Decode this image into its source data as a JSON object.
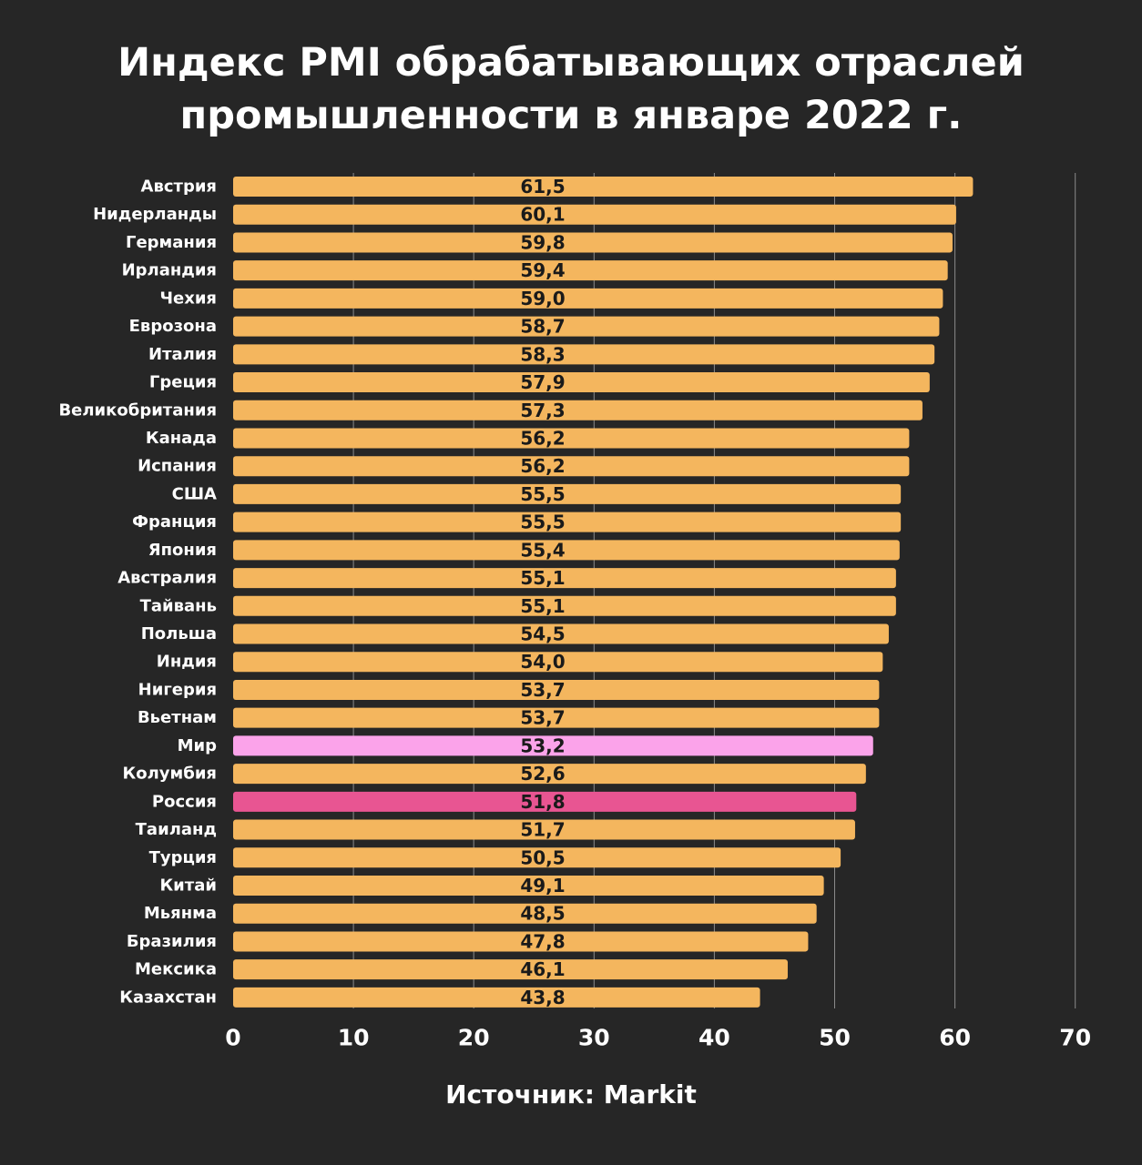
{
  "title_lines": [
    "Индекс PMI обрабатывающих отраслей",
    "промышленности в январе 2022 г."
  ],
  "source": "Источник: Markit",
  "colors": {
    "default": "#f4b65e",
    "world": "#fba3ea",
    "russia": "#e85592",
    "background": "#262626"
  },
  "chart_data": {
    "type": "bar",
    "orientation": "horizontal",
    "title": "Индекс PMI обрабатывающих отраслей промышленности в январе 2022 г.",
    "xlim": [
      0,
      70
    ],
    "x_ticks": [
      0,
      10,
      20,
      30,
      40,
      50,
      60,
      70
    ],
    "grid": "vertical",
    "data_labels": true,
    "categories": [
      "Австрия",
      "Нидерланды",
      "Германия",
      "Ирландия",
      "Чехия",
      "Еврозона",
      "Италия",
      "Греция",
      "Великобритания",
      "Канада",
      "Испания",
      "США",
      "Франция",
      "Япония",
      "Австралия",
      "Тайвань",
      "Польша",
      "Индия",
      "Нигерия",
      "Вьетнам",
      "Мир",
      "Колумбия",
      "Россия",
      "Таиланд",
      "Турция",
      "Китай",
      "Мьянма",
      "Бразилия",
      "Мексика",
      "Казахстан"
    ],
    "values": [
      61.5,
      60.1,
      59.8,
      59.4,
      59.0,
      58.7,
      58.3,
      57.9,
      57.3,
      56.2,
      56.2,
      55.5,
      55.5,
      55.4,
      55.1,
      55.1,
      54.5,
      54.0,
      53.7,
      53.7,
      53.2,
      52.6,
      51.8,
      51.7,
      50.5,
      49.1,
      48.5,
      47.8,
      46.1,
      43.8
    ],
    "labels": [
      "61,5",
      "60,1",
      "59,8",
      "59,4",
      "59,0",
      "58,7",
      "58,3",
      "57,9",
      "57,3",
      "56,2",
      "56,2",
      "55,5",
      "55,5",
      "55,4",
      "55,1",
      "55,1",
      "54,5",
      "54,0",
      "53,7",
      "53,7",
      "53,2",
      "52,6",
      "51,8",
      "51,7",
      "50,5",
      "49,1",
      "48,5",
      "47,8",
      "46,1",
      "43,8"
    ],
    "highlight": {
      "Мир": "world",
      "Россия": "russia"
    }
  }
}
